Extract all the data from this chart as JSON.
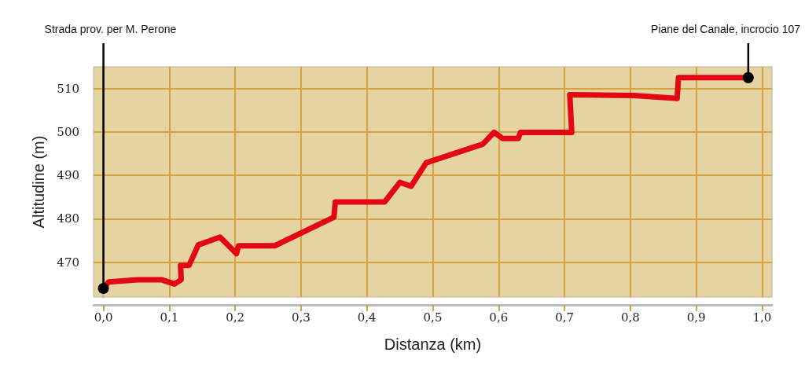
{
  "chart_data": {
    "type": "line",
    "xlabel": "Distanza (km)",
    "ylabel": "Altitudine (m)",
    "x": [
      0,
      0.008,
      0.052,
      0.088,
      0.108,
      0.118,
      0.117,
      0.13,
      0.144,
      0.177,
      0.202,
      0.205,
      0.26,
      0.35,
      0.352,
      0.427,
      0.45,
      0.467,
      0.49,
      0.576,
      0.593,
      0.606,
      0.63,
      0.633,
      0.711,
      0.708,
      0.805,
      0.871,
      0.873,
      0.979
    ],
    "series": [
      {
        "color": "#e30613",
        "values": [
          464,
          465.5,
          466,
          466,
          465,
          466,
          469.3,
          469.3,
          474,
          475.8,
          472,
          473.8,
          473.8,
          480.4,
          483.9,
          483.9,
          488.4,
          487.5,
          492.9,
          497.2,
          499.9,
          498.5,
          498.5,
          499.9,
          499.9,
          508.6,
          508.4,
          507.7,
          512.5,
          512.5
        ]
      }
    ],
    "xlim": [
      -0.015,
      1.015
    ],
    "xticks": [
      {
        "value": 0,
        "label": "0,0"
      },
      {
        "value": 0.1,
        "label": "0,1"
      },
      {
        "value": 0.2,
        "label": "0,2"
      },
      {
        "value": 0.3,
        "label": "0,3"
      },
      {
        "value": 0.4,
        "label": "0,4"
      },
      {
        "value": 0.5,
        "label": "0,5"
      },
      {
        "value": 0.6,
        "label": "0,6"
      },
      {
        "value": 0.7,
        "label": "0,7"
      },
      {
        "value": 0.8,
        "label": "0,8"
      },
      {
        "value": 0.9,
        "label": "0,9"
      },
      {
        "value": 1,
        "label": "1,0"
      }
    ],
    "ylim": [
      462,
      515
    ],
    "yticks": [
      470,
      480,
      490,
      500,
      510
    ],
    "grid": true,
    "marker": "none",
    "line_style": "solid",
    "annotations": [
      {
        "text": "Strada prov. per M. Perone",
        "x": 0,
        "y": 464
      },
      {
        "text": "Piane del Canale, incrocio 107",
        "x": 0.979,
        "y": 512.5
      }
    ]
  }
}
